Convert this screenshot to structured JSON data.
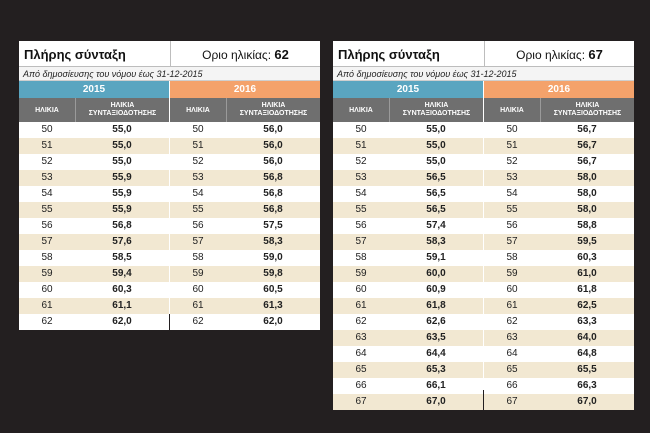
{
  "left": {
    "title": "Πλήρης σύνταξη",
    "age_limit_label": "Οριο ηλικίας:",
    "age_limit_value": "62",
    "subtitle": "Από δημοσίευσης του νόμου έως 31-12-2015",
    "col_age": "ΗΛΙΚΙΑ",
    "col_pension_line1": "ΗΛΙΚΙΑ",
    "col_pension_line2": "ΣΥΝΤΑΞΙΟΔΟΤΗΣΗΣ",
    "y2015": {
      "year": "2015",
      "rows": [
        {
          "age": "50",
          "pension": "55,0"
        },
        {
          "age": "51",
          "pension": "55,0"
        },
        {
          "age": "52",
          "pension": "55,0"
        },
        {
          "age": "53",
          "pension": "55,9"
        },
        {
          "age": "54",
          "pension": "55,9"
        },
        {
          "age": "55",
          "pension": "55,9"
        },
        {
          "age": "56",
          "pension": "56,8"
        },
        {
          "age": "57",
          "pension": "57,6"
        },
        {
          "age": "58",
          "pension": "58,5"
        },
        {
          "age": "59",
          "pension": "59,4"
        },
        {
          "age": "60",
          "pension": "60,3"
        },
        {
          "age": "61",
          "pension": "61,1"
        },
        {
          "age": "62",
          "pension": "62,0"
        }
      ]
    },
    "y2016": {
      "year": "2016",
      "rows": [
        {
          "age": "50",
          "pension": "56,0"
        },
        {
          "age": "51",
          "pension": "56,0"
        },
        {
          "age": "52",
          "pension": "56,0"
        },
        {
          "age": "53",
          "pension": "56,8"
        },
        {
          "age": "54",
          "pension": "56,8"
        },
        {
          "age": "55",
          "pension": "56,8"
        },
        {
          "age": "56",
          "pension": "57,5"
        },
        {
          "age": "57",
          "pension": "58,3"
        },
        {
          "age": "58",
          "pension": "59,0"
        },
        {
          "age": "59",
          "pension": "59,8"
        },
        {
          "age": "60",
          "pension": "60,5"
        },
        {
          "age": "61",
          "pension": "61,3"
        },
        {
          "age": "62",
          "pension": "62,0"
        }
      ]
    }
  },
  "right": {
    "title": "Πλήρης σύνταξη",
    "age_limit_label": "Οριο ηλικίας:",
    "age_limit_value": "67",
    "subtitle": "Από δημοσίευσης του νόμου έως 31-12-2015",
    "col_age": "ΗΛΙΚΙΑ",
    "col_pension_line1": "ΗΛΙΚΙΑ",
    "col_pension_line2": "ΣΥΝΤΑΞΙΟΔΟΤΗΣΗΣ",
    "y2015": {
      "year": "2015",
      "rows": [
        {
          "age": "50",
          "pension": "55,0"
        },
        {
          "age": "51",
          "pension": "55,0"
        },
        {
          "age": "52",
          "pension": "55,0"
        },
        {
          "age": "53",
          "pension": "56,5"
        },
        {
          "age": "54",
          "pension": "56,5"
        },
        {
          "age": "55",
          "pension": "56,5"
        },
        {
          "age": "56",
          "pension": "57,4"
        },
        {
          "age": "57",
          "pension": "58,3"
        },
        {
          "age": "58",
          "pension": "59,1"
        },
        {
          "age": "59",
          "pension": "60,0"
        },
        {
          "age": "60",
          "pension": "60,9"
        },
        {
          "age": "61",
          "pension": "61,8"
        },
        {
          "age": "62",
          "pension": "62,6"
        },
        {
          "age": "63",
          "pension": "63,5"
        },
        {
          "age": "64",
          "pension": "64,4"
        },
        {
          "age": "65",
          "pension": "65,3"
        },
        {
          "age": "66",
          "pension": "66,1"
        },
        {
          "age": "67",
          "pension": "67,0"
        }
      ]
    },
    "y2016": {
      "year": "2016",
      "rows": [
        {
          "age": "50",
          "pension": "56,7"
        },
        {
          "age": "51",
          "pension": "56,7"
        },
        {
          "age": "52",
          "pension": "56,7"
        },
        {
          "age": "53",
          "pension": "58,0"
        },
        {
          "age": "54",
          "pension": "58,0"
        },
        {
          "age": "55",
          "pension": "58,0"
        },
        {
          "age": "56",
          "pension": "58,8"
        },
        {
          "age": "57",
          "pension": "59,5"
        },
        {
          "age": "58",
          "pension": "60,3"
        },
        {
          "age": "59",
          "pension": "61,0"
        },
        {
          "age": "60",
          "pension": "61,8"
        },
        {
          "age": "61",
          "pension": "62,5"
        },
        {
          "age": "62",
          "pension": "63,3"
        },
        {
          "age": "63",
          "pension": "64,0"
        },
        {
          "age": "64",
          "pension": "64,8"
        },
        {
          "age": "65",
          "pension": "65,5"
        },
        {
          "age": "66",
          "pension": "66,3"
        },
        {
          "age": "67",
          "pension": "67,0"
        }
      ]
    }
  },
  "colors": {
    "background": "#231f20",
    "year_2015_header": "#5aa5c0",
    "year_2016_header": "#f4a26b",
    "column_header": "#6f6f6f",
    "row_stripe": "#f2e8d2"
  }
}
